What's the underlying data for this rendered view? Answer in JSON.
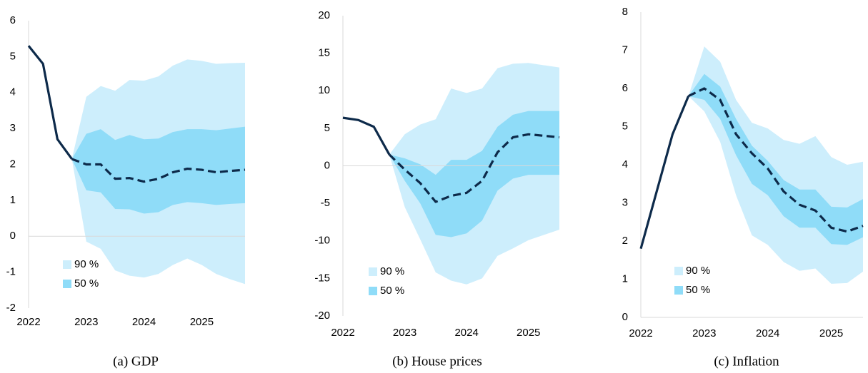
{
  "chart_data": [
    {
      "type": "fan",
      "title": "(a) GDP",
      "x": [
        2022,
        2022.25,
        2022.5,
        2022.75,
        2023,
        2023.25,
        2023.5,
        2023.75,
        2024,
        2024.25,
        2024.5,
        2024.75,
        2025,
        2025.25,
        2025.5,
        2025.75
      ],
      "xlim": [
        2022,
        2025.75
      ],
      "xticks": [
        2022,
        2023,
        2024,
        2025
      ],
      "ylim": [
        -2,
        6
      ],
      "yticks": [
        -2,
        -1,
        0,
        1,
        2,
        3,
        4,
        5,
        6
      ],
      "bands": [
        {
          "name": "90 %",
          "color": "#cdeefc",
          "upper": [
            null,
            null,
            null,
            2.15,
            3.88,
            4.18,
            4.05,
            4.35,
            4.33,
            4.45,
            4.75,
            4.92,
            4.88,
            4.8,
            4.82,
            4.83
          ],
          "lower": [
            null,
            null,
            null,
            2.15,
            -0.15,
            -0.35,
            -0.95,
            -1.1,
            -1.15,
            -1.05,
            -0.8,
            -0.62,
            -0.8,
            -1.05,
            -1.2,
            -1.33
          ]
        },
        {
          "name": "50 %",
          "color": "#8fdcf8",
          "upper": [
            null,
            null,
            null,
            2.15,
            2.85,
            2.98,
            2.68,
            2.82,
            2.7,
            2.72,
            2.9,
            2.98,
            2.98,
            2.95,
            3.0,
            3.05
          ],
          "lower": [
            null,
            null,
            null,
            2.15,
            1.28,
            1.22,
            0.76,
            0.75,
            0.63,
            0.67,
            0.87,
            0.95,
            0.92,
            0.87,
            0.9,
            0.92
          ]
        }
      ],
      "series": [
        {
          "color": "#0d2a4a",
          "dashed": false,
          "values": [
            5.3,
            4.8,
            2.7,
            2.15,
            null,
            null,
            null,
            null,
            null,
            null,
            null,
            null,
            null,
            null,
            null,
            null
          ]
        },
        {
          "color": "#0d2a4a",
          "dashed": true,
          "values": [
            null,
            null,
            null,
            2.15,
            2.0,
            2.0,
            1.6,
            1.62,
            1.52,
            1.6,
            1.78,
            1.88,
            1.85,
            1.78,
            1.82,
            1.85
          ]
        }
      ]
    },
    {
      "type": "fan",
      "title": "(b) House prices",
      "x": [
        2022,
        2022.25,
        2022.5,
        2022.75,
        2023,
        2023.25,
        2023.5,
        2023.75,
        2024,
        2024.25,
        2024.5,
        2024.75,
        2025,
        2025.25,
        2025.5
      ],
      "xlim": [
        2022,
        2025.5
      ],
      "xticks": [
        2022,
        2023,
        2024,
        2025
      ],
      "ylim": [
        -20,
        20
      ],
      "yticks": [
        -20,
        -15,
        -10,
        -5,
        0,
        5,
        10,
        15,
        20
      ],
      "bands": [
        {
          "name": "90 %",
          "color": "#cdeefc",
          "upper": [
            null,
            null,
            null,
            1.5,
            4.2,
            5.5,
            6.2,
            10.3,
            9.7,
            10.3,
            13.0,
            13.6,
            13.7,
            13.4,
            13.1
          ],
          "lower": [
            null,
            null,
            null,
            1.5,
            -5.5,
            -9.8,
            -14.2,
            -15.3,
            -15.8,
            -15.0,
            -12.0,
            -11.0,
            -9.9,
            -9.2,
            -8.5
          ]
        },
        {
          "name": "50 %",
          "color": "#8fdcf8",
          "upper": [
            null,
            null,
            null,
            1.5,
            1.0,
            0.2,
            -1.2,
            0.8,
            0.8,
            2.0,
            5.2,
            6.8,
            7.3,
            7.3,
            7.3
          ],
          "lower": [
            null,
            null,
            null,
            1.5,
            -2.0,
            -5.0,
            -9.2,
            -9.5,
            -9.0,
            -7.3,
            -3.3,
            -1.7,
            -1.2,
            -1.2,
            -1.2
          ]
        }
      ],
      "series": [
        {
          "color": "#0d2a4a",
          "dashed": false,
          "values": [
            6.4,
            6.1,
            5.2,
            1.5,
            null,
            null,
            null,
            null,
            null,
            null,
            null,
            null,
            null,
            null,
            null
          ]
        },
        {
          "color": "#0d2a4a",
          "dashed": true,
          "values": [
            null,
            null,
            null,
            1.5,
            -0.5,
            -2.3,
            -4.8,
            -4.0,
            -3.6,
            -2.0,
            1.8,
            3.8,
            4.2,
            4.0,
            3.8
          ]
        }
      ]
    },
    {
      "type": "fan",
      "title": "(c) Inflation",
      "x": [
        2022,
        2022.25,
        2022.5,
        2022.75,
        2023,
        2023.25,
        2023.5,
        2023.75,
        2024,
        2024.25,
        2024.5,
        2024.75,
        2025,
        2025.25,
        2025.5
      ],
      "xlim": [
        2022,
        2025.5
      ],
      "xticks": [
        2022,
        2023,
        2024,
        2025
      ],
      "ylim": [
        0,
        8
      ],
      "yticks": [
        0,
        1,
        2,
        3,
        4,
        5,
        6,
        7,
        8
      ],
      "bands": [
        {
          "name": "90 %",
          "color": "#cdeefc",
          "upper": [
            null,
            null,
            null,
            5.8,
            7.1,
            6.7,
            5.7,
            5.1,
            4.95,
            4.65,
            4.55,
            4.75,
            4.2,
            4.0,
            4.08
          ],
          "lower": [
            null,
            null,
            null,
            5.8,
            5.4,
            4.6,
            3.2,
            2.15,
            1.9,
            1.45,
            1.22,
            1.28,
            0.88,
            0.9,
            1.2
          ]
        },
        {
          "name": "50 %",
          "color": "#8fdcf8",
          "upper": [
            null,
            null,
            null,
            5.8,
            6.38,
            6.05,
            5.2,
            4.5,
            4.1,
            3.6,
            3.35,
            3.35,
            2.9,
            2.88,
            3.1
          ],
          "lower": [
            null,
            null,
            null,
            5.8,
            5.7,
            5.2,
            4.25,
            3.5,
            3.2,
            2.65,
            2.35,
            2.35,
            1.92,
            1.9,
            2.1
          ]
        }
      ],
      "series": [
        {
          "color": "#0d2a4a",
          "dashed": false,
          "values": [
            1.8,
            3.3,
            4.8,
            5.8,
            null,
            null,
            null,
            null,
            null,
            null,
            null,
            null,
            null,
            null,
            null
          ]
        },
        {
          "color": "#0d2a4a",
          "dashed": true,
          "values": [
            null,
            null,
            null,
            5.8,
            6.0,
            5.7,
            4.8,
            4.3,
            3.9,
            3.3,
            2.95,
            2.8,
            2.35,
            2.25,
            2.4
          ]
        }
      ]
    }
  ]
}
